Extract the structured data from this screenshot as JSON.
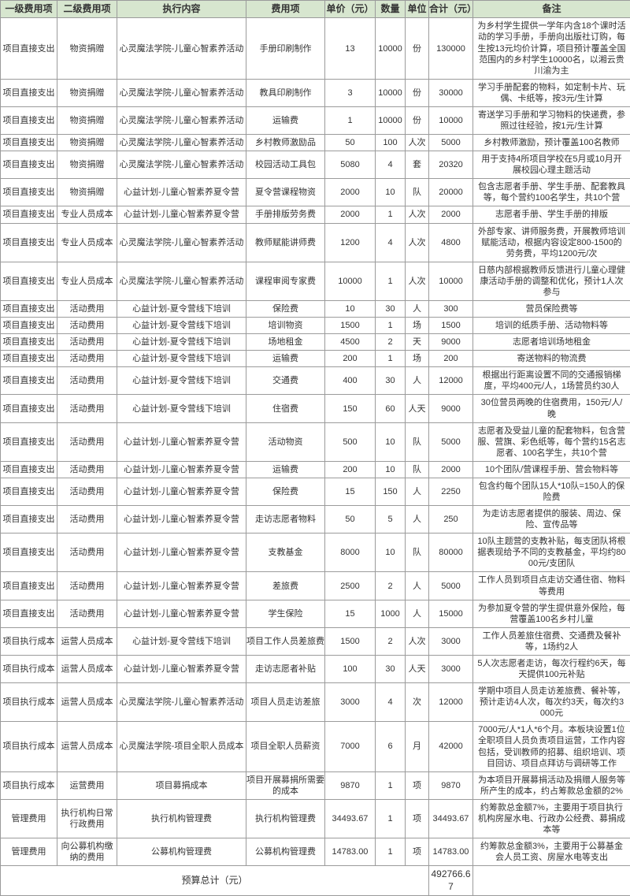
{
  "colors": {
    "header_bg": "#d7e6cf",
    "border": "#9b9b9b",
    "text": "#333333"
  },
  "table": {
    "headers": [
      "一级费用项",
      "二级费用项",
      "执行内容",
      "费用项",
      "单价（元）",
      "数量",
      "单位",
      "合计（元）",
      "备注"
    ],
    "rows": [
      [
        "项目直接支出",
        "物资捐赠",
        "心灵魔法学院-儿童心智素养活动",
        "手册印刷制作",
        "13",
        "10000",
        "份",
        "130000",
        "为乡村学生提供一学年内含18个课时活动的学习手册，手册向出版社订购，每生按13元均价计算，项目预计覆盖全国范围内的乡村学生10000名，以湘云贵川渝为主"
      ],
      [
        "项目直接支出",
        "物资捐赠",
        "心灵魔法学院-儿童心智素养活动",
        "教具印刷制作",
        "3",
        "10000",
        "份",
        "30000",
        "学习手册配套的物料，如定制卡片、玩偶、卡纸等，按3元/生计算"
      ],
      [
        "项目直接支出",
        "物资捐赠",
        "心灵魔法学院-儿童心智素养活动",
        "运输费",
        "1",
        "10000",
        "份",
        "10000",
        "寄送学习手册和学习物料的快递费，参照过往经验，按1元/生计算"
      ],
      [
        "项目直接支出",
        "物资捐赠",
        "心灵魔法学院-儿童心智素养活动",
        "乡村教师激励品",
        "50",
        "100",
        "人次",
        "5000",
        "乡村教师激励，预计覆盖100名教师"
      ],
      [
        "项目直接支出",
        "物资捐赠",
        "心灵魔法学院-儿童心智素养活动",
        "校园活动工具包",
        "5080",
        "4",
        "套",
        "20320",
        "用于支持4所项目学校在5月或10月开展校园心理主题活动"
      ],
      [
        "项目直接支出",
        "物资捐赠",
        "心益计划-儿童心智素养夏令营",
        "夏令营课程物资",
        "2000",
        "10",
        "队",
        "20000",
        "包含志愿者手册、学生手册、配套教具等，每个营约100名学生，共10个营"
      ],
      [
        "项目直接支出",
        "专业人员成本",
        "心益计划-儿童心智素养夏令营",
        "手册排版劳务费",
        "2000",
        "1",
        "人次",
        "2000",
        "志愿者手册、学生手册的排版"
      ],
      [
        "项目直接支出",
        "专业人员成本",
        "心灵魔法学院-儿童心智素养活动",
        "教师赋能讲师费",
        "1200",
        "4",
        "人次",
        "4800",
        "外部专家、讲师服务费，开展教师培训赋能活动，根据内容设定800-1500的劳务费，平均1200元/次"
      ],
      [
        "项目直接支出",
        "专业人员成本",
        "心灵魔法学院-儿童心智素养活动",
        "课程审阅专家费",
        "10000",
        "1",
        "人次",
        "10000",
        "日慈内部根据教师反馈进行儿童心理健康活动手册的调整和优化，预计1人次参与"
      ],
      [
        "项目直接支出",
        "活动费用",
        "心益计划-夏令营线下培训",
        "保险费",
        "10",
        "30",
        "人",
        "300",
        "营员保险费等"
      ],
      [
        "项目直接支出",
        "活动费用",
        "心益计划-夏令营线下培训",
        "培训物资",
        "1500",
        "1",
        "场",
        "1500",
        "培训的纸质手册、活动物料等"
      ],
      [
        "项目直接支出",
        "活动费用",
        "心益计划-夏令营线下培训",
        "场地租金",
        "4500",
        "2",
        "天",
        "9000",
        "志愿者培训场地租金"
      ],
      [
        "项目直接支出",
        "活动费用",
        "心益计划-夏令营线下培训",
        "运输费",
        "200",
        "1",
        "场",
        "200",
        "寄送物料的物流费"
      ],
      [
        "项目直接支出",
        "活动费用",
        "心益计划-夏令营线下培训",
        "交通费",
        "400",
        "30",
        "人",
        "12000",
        "根据出行距离设置不同的交通报销梯度，平均400元/人，1场营员约30人"
      ],
      [
        "项目直接支出",
        "活动费用",
        "心益计划-夏令营线下培训",
        "住宿费",
        "150",
        "60",
        "人天",
        "9000",
        "30位营员两晚的住宿费用，150元/人/晚"
      ],
      [
        "项目直接支出",
        "活动费用",
        "心益计划-儿童心智素养夏令营",
        "活动物资",
        "500",
        "10",
        "队",
        "5000",
        "志愿者及受益儿童的配套物料，包含营服、营旗、彩色纸等，每个营约15名志愿者、100名学生，共10个营"
      ],
      [
        "项目直接支出",
        "活动费用",
        "心益计划-儿童心智素养夏令营",
        "运输费",
        "200",
        "10",
        "队",
        "2000",
        "10个团队/营课程手册、营会物料等"
      ],
      [
        "项目直接支出",
        "活动费用",
        "心益计划-儿童心智素养夏令营",
        "保险费",
        "15",
        "150",
        "人",
        "2250",
        "包含约每个团队15人*10队=150人的保险费"
      ],
      [
        "项目直接支出",
        "活动费用",
        "心益计划-儿童心智素养夏令营",
        "走访志愿者物料",
        "50",
        "5",
        "人",
        "250",
        "为走访志愿者提供的服装、周边、保险、宣传品等"
      ],
      [
        "项目直接支出",
        "活动费用",
        "心益计划-儿童心智素养夏令营",
        "支教基金",
        "8000",
        "10",
        "队",
        "80000",
        "10队主题营的支教补贴，每支团队将根据表现给予不同的支教基金，平均约8000元/支团队"
      ],
      [
        "项目直接支出",
        "活动费用",
        "心益计划-儿童心智素养夏令营",
        "差旅费",
        "2500",
        "2",
        "人",
        "5000",
        "工作人员到项目点走访交通住宿、物料等费用"
      ],
      [
        "项目直接支出",
        "活动费用",
        "心益计划-儿童心智素养夏令营",
        "学生保险",
        "15",
        "1000",
        "人",
        "15000",
        "为参加夏令营的学生提供意外保险，每营覆盖100名乡村儿童"
      ],
      [
        "项目执行成本",
        "运营人员成本",
        "心益计划-夏令营线下培训",
        "项目工作人员差旅费",
        "1500",
        "2",
        "人次",
        "3000",
        "工作人员差旅住宿费、交通费及餐补等，1场约2人"
      ],
      [
        "项目执行成本",
        "运营人员成本",
        "心益计划-儿童心智素养夏令营",
        "走访志愿者补贴",
        "100",
        "30",
        "人天",
        "3000",
        "5人次志愿者走访，每次行程约6天，每天提供100元补贴"
      ],
      [
        "项目执行成本",
        "运营人员成本",
        "心灵魔法学院-儿童心智素养活动",
        "项目人员走访差旅",
        "3000",
        "4",
        "次",
        "12000",
        "学期中项目人员走访差旅费、餐补等，预计走访4人次，每次约3天，每次约3000元"
      ],
      [
        "项目执行成本",
        "运营人员成本",
        "心灵魔法学院-项目全职人员成本",
        "项目全职人员薪资",
        "7000",
        "6",
        "月",
        "42000",
        "7000元/人*1人*6个月。本板块设置1位全职项目人员负责项目运营，工作内容包括，受训教师的招募、组织培训、项目回访、项目点拜访与调研等工作"
      ],
      [
        "项目执行成本",
        "运营费用",
        "项目募捐成本",
        "项目开展募捐所需要的成本",
        "9870",
        "1",
        "项",
        "9870",
        "为本项目开展募捐活动及捐赠人服务等所产生的成本，约占筹款总金额的2%"
      ],
      [
        "管理费用",
        "执行机构日常行政费用",
        "执行机构管理费",
        "执行机构管理费",
        "34493.67",
        "1",
        "项",
        "34493.67",
        "约筹款总金额7%，主要用于项目执行机构房屋水电、行政办公经费、募捐成本等"
      ],
      [
        "管理费用",
        "向公募机构缴纳的费用",
        "公募机构管理费",
        "公募机构管理费",
        "14783.00",
        "1",
        "项",
        "14783.00",
        "约筹款总金额3%，主要用于公募基金会人员工资、房屋水电等支出"
      ]
    ],
    "total_label": "预算总计（元）",
    "total_value": "492766.67"
  }
}
